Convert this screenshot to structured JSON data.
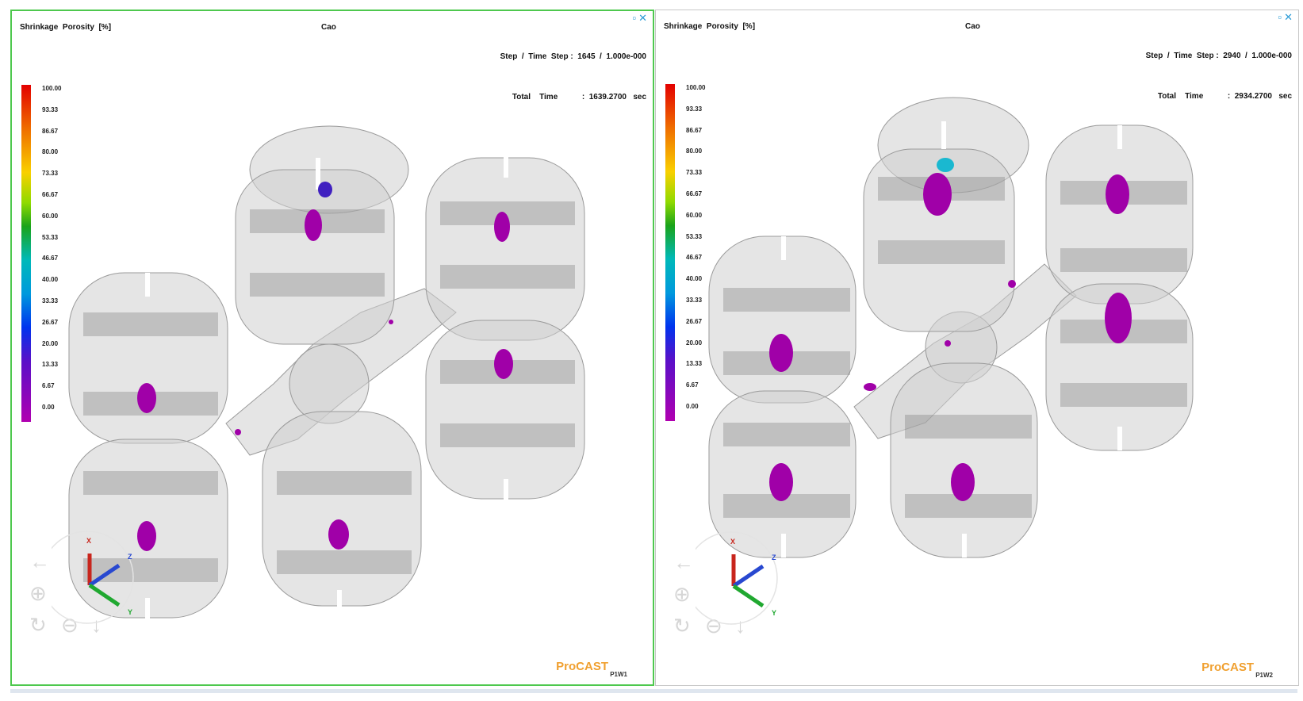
{
  "viewports": [
    {
      "id": "left",
      "quantity_label": "Shrinkage  Porosity  [%]",
      "case_name": "Cao",
      "step_line": "Step  /  Time  Step :  1645  /  1.000e-000",
      "time_line": "Total    Time           :  1639.2700   sec",
      "brand": "ProCAST",
      "viewport_tag": "P1W1",
      "active": true
    },
    {
      "id": "right",
      "quantity_label": "Shrinkage  Porosity  [%]",
      "case_name": "Cao",
      "step_line": "Step  /  Time  Step :  2940  /  1.000e-000",
      "time_line": "Total    Time           :  2934.2700   sec",
      "brand": "ProCAST",
      "viewport_tag": "P1W2",
      "active": false
    }
  ],
  "legend": {
    "ticks": [
      "100.00",
      "93.33",
      "86.67",
      "80.00",
      "73.33",
      "66.67",
      "60.00",
      "53.33",
      "46.67",
      "40.00",
      "33.33",
      "26.67",
      "20.00",
      "13.33",
      "6.67",
      "0.00"
    ],
    "colors": [
      "#e30000",
      "#e83a00",
      "#ef6d00",
      "#f6a000",
      "#f9d000",
      "#e2e900",
      "#8fda00",
      "#1aa31a",
      "#00a36e",
      "#00b9b9",
      "#0099dd",
      "#0055ee",
      "#1a1ad8",
      "#5a10c8",
      "#9a10c0",
      "#b000b0"
    ]
  },
  "axis_labels": {
    "x": "X",
    "y": "Y",
    "z": "Z"
  },
  "window_controls": "▫✕",
  "icons": [
    "close-icon",
    "maximize-icon",
    "back-arrow-icon",
    "zoom-icon",
    "rotate-icon",
    "pan-icon",
    "down-arrow-icon",
    "axis-triad-icon"
  ]
}
